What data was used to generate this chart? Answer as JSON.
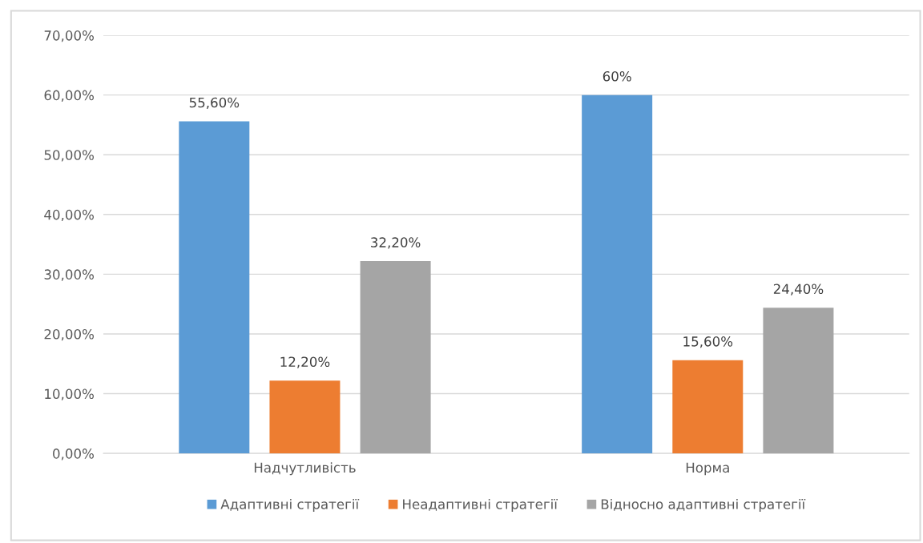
{
  "chart_data": {
    "type": "bar",
    "categories": [
      "Надчутливість",
      "Норма"
    ],
    "series": [
      {
        "name": "Адаптивні стратегії",
        "color": "#5b9bd5",
        "values": [
          55.6,
          60
        ],
        "value_labels": [
          "55,60%",
          "60%"
        ]
      },
      {
        "name": "Неадаптивні стратегії",
        "color": "#ed7d31",
        "values": [
          12.2,
          15.6
        ],
        "value_labels": [
          "12,20%",
          "15,60%"
        ]
      },
      {
        "name": "Відносно адаптивні стратегії",
        "color": "#a5a5a5",
        "values": [
          32.2,
          24.4
        ],
        "value_labels": [
          "32,20%",
          "24,40%"
        ]
      }
    ],
    "ylim": [
      0,
      70
    ],
    "yticks": [
      {
        "value": 0,
        "label": "0,00%"
      },
      {
        "value": 10,
        "label": "10,00%"
      },
      {
        "value": 20,
        "label": "20,00%"
      },
      {
        "value": 30,
        "label": "30,00%"
      },
      {
        "value": 40,
        "label": "40,00%"
      },
      {
        "value": 50,
        "label": "50,00%"
      },
      {
        "value": 60,
        "label": "60,00%"
      },
      {
        "value": 70,
        "label": "70,00%"
      }
    ],
    "grid": "y",
    "legend": "bottom"
  }
}
